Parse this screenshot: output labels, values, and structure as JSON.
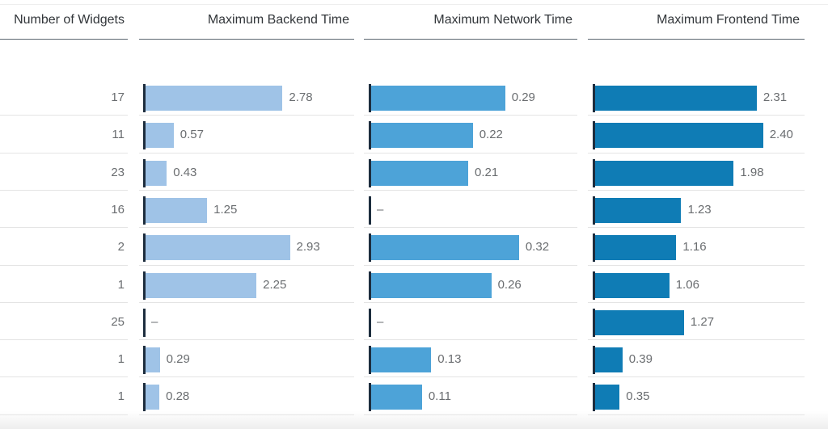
{
  "headers": {
    "widgets": "Number of Widgets",
    "backend": "Maximum Backend Time",
    "network": "Maximum Network Time",
    "frontend": "Maximum Frontend Time"
  },
  "colors": {
    "backend": "#9fc3e7",
    "network": "#4da3d8",
    "frontend": "#0f7cb5",
    "axis": "#1d2d3e",
    "text": "#6a6d70"
  },
  "chart_data": {
    "type": "table",
    "columns": [
      "Number of Widgets",
      "Maximum Backend Time",
      "Maximum Network Time",
      "Maximum Frontend Time"
    ],
    "bar_columns": [
      {
        "key": "backend",
        "max": 3.2
      },
      {
        "key": "network",
        "max": 0.35
      },
      {
        "key": "frontend",
        "max": 2.6
      }
    ],
    "rows": [
      {
        "widgets": "17",
        "backend": 2.78,
        "network": 0.29,
        "frontend": 2.31
      },
      {
        "widgets": "11",
        "backend": 0.57,
        "network": 0.22,
        "frontend": 2.4
      },
      {
        "widgets": "23",
        "backend": 0.43,
        "network": 0.21,
        "frontend": 1.98
      },
      {
        "widgets": "16",
        "backend": 1.25,
        "network": null,
        "frontend": 1.23
      },
      {
        "widgets": "2",
        "backend": 2.93,
        "network": 0.32,
        "frontend": 1.16
      },
      {
        "widgets": "1",
        "backend": 2.25,
        "network": 0.26,
        "frontend": 1.06
      },
      {
        "widgets": "25",
        "backend": null,
        "network": null,
        "frontend": 1.27
      },
      {
        "widgets": "1",
        "backend": 0.29,
        "network": 0.13,
        "frontend": 0.39
      },
      {
        "widgets": "1",
        "backend": 0.28,
        "network": 0.11,
        "frontend": 0.35
      }
    ],
    "empty_label": "–"
  }
}
